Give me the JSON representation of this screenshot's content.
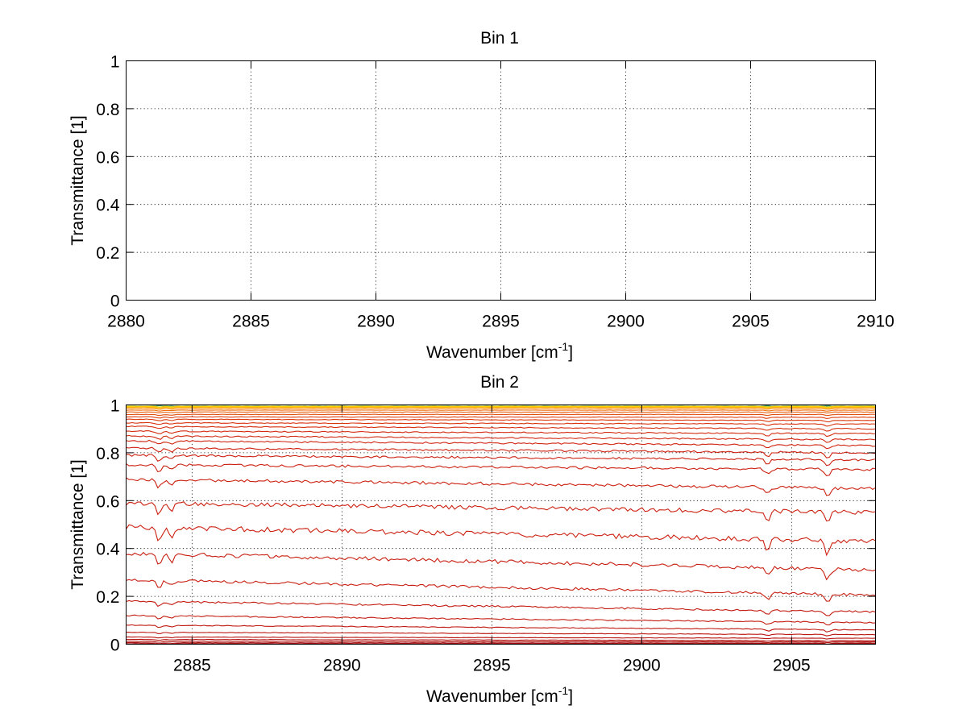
{
  "chart_data": [
    {
      "type": "line",
      "title": "Bin 1",
      "xlabel": "Wavenumber [cm",
      "xlabel_sup": "-1",
      "xlabel_end": "]",
      "ylabel": "Transmittance [1]",
      "xlim": [
        2880,
        2910
      ],
      "ylim": [
        0,
        1
      ],
      "x_ticks": [
        "2880",
        "2885",
        "2890",
        "2895",
        "2900",
        "2905",
        "2910"
      ],
      "y_ticks": [
        "0",
        "0.2",
        "0.4",
        "0.6",
        "0.8",
        "1"
      ],
      "grid": true,
      "series": []
    },
    {
      "type": "line",
      "title": "Bin 2",
      "xlabel": "Wavenumber [cm",
      "xlabel_sup": "-1",
      "xlabel_end": "]",
      "ylabel": "Transmittance [1]",
      "xlim": [
        2882.8,
        2907.8
      ],
      "ylim": [
        0,
        1
      ],
      "x_ticks": [
        "2885",
        "2890",
        "2895",
        "2900",
        "2905"
      ],
      "y_ticks": [
        "0",
        "0.2",
        "0.4",
        "0.6",
        "0.8",
        "1"
      ],
      "grid": true,
      "x": [
        2882.8,
        2907.8
      ],
      "series": [
        {
          "values": [
            1.0,
            1.0
          ],
          "color": "#1f7fb0"
        },
        {
          "values": [
            1.0,
            1.0
          ],
          "color": "#2e8b57"
        },
        {
          "values": [
            0.995,
            0.995
          ],
          "color": "#b0c020"
        },
        {
          "values": [
            0.993,
            0.993
          ],
          "color": "#ffd400"
        },
        {
          "values": [
            0.99,
            0.99
          ],
          "color": "#ffb000"
        },
        {
          "values": [
            0.985,
            0.985
          ],
          "color": "#ff8c00"
        },
        {
          "values": [
            0.978,
            0.978
          ],
          "color": "#f07010"
        },
        {
          "values": [
            0.97,
            0.97
          ],
          "color": "#e86010"
        },
        {
          "values": [
            0.96,
            0.96
          ],
          "color": "#e05010"
        },
        {
          "values": [
            0.95,
            0.948
          ],
          "color": "#e04010"
        },
        {
          "values": [
            0.94,
            0.935
          ],
          "color": "#dd3a10"
        },
        {
          "values": [
            0.925,
            0.92
          ],
          "color": "#d93510"
        },
        {
          "values": [
            0.91,
            0.9
          ],
          "color": "#d63010"
        },
        {
          "values": [
            0.89,
            0.88
          ],
          "color": "#d42c10"
        },
        {
          "values": [
            0.87,
            0.855
          ],
          "color": "#d22810"
        },
        {
          "values": [
            0.85,
            0.83
          ],
          "color": "#d02510"
        },
        {
          "values": [
            0.82,
            0.8
          ],
          "color": "#cf2210"
        },
        {
          "values": [
            0.79,
            0.77
          ],
          "color": "#cc2010"
        },
        {
          "values": [
            0.75,
            0.73
          ],
          "color": "#cc2010"
        },
        {
          "values": [
            0.69,
            0.65
          ],
          "color": "#cc2010"
        },
        {
          "values": [
            0.59,
            0.55
          ],
          "color": "#cc2010"
        },
        {
          "values": [
            0.49,
            0.43
          ],
          "color": "#cc2010"
        },
        {
          "values": [
            0.38,
            0.31
          ],
          "color": "#c81e10"
        },
        {
          "values": [
            0.27,
            0.205
          ],
          "color": "#c81e10"
        },
        {
          "values": [
            0.18,
            0.135
          ],
          "color": "#c41c10"
        },
        {
          "values": [
            0.12,
            0.09
          ],
          "color": "#c41c10"
        },
        {
          "values": [
            0.08,
            0.06
          ],
          "color": "#c01a10"
        },
        {
          "values": [
            0.05,
            0.04
          ],
          "color": "#bc1810"
        },
        {
          "values": [
            0.03,
            0.025
          ],
          "color": "#b81610"
        },
        {
          "values": [
            0.02,
            0.015
          ],
          "color": "#b41410"
        },
        {
          "values": [
            0.012,
            0.01
          ],
          "color": "#b01210"
        },
        {
          "values": [
            0.006,
            0.005
          ],
          "color": "#a80f10"
        },
        {
          "values": [
            0.002,
            0.002
          ],
          "color": "#a00c10"
        }
      ]
    }
  ]
}
